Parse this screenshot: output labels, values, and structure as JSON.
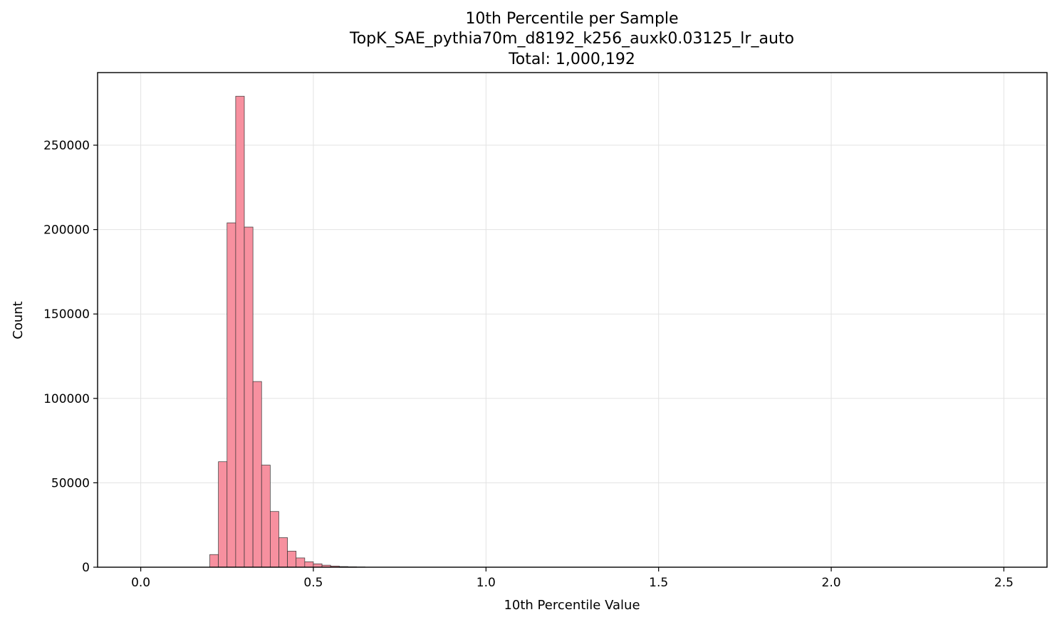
{
  "chart_data": {
    "type": "bar",
    "title": [
      "10th Percentile per Sample",
      "TopK_SAE_pythia70m_d8192_k256_auxk0.03125_lr_auto",
      "Total: 1,000,192"
    ],
    "xlabel": "10th Percentile Value",
    "ylabel": "Count",
    "xlim": [
      -0.125,
      2.625
    ],
    "ylim": [
      0,
      293000
    ],
    "xticks": [
      0.0,
      0.5,
      1.0,
      1.5,
      2.0,
      2.5
    ],
    "xtick_labels": [
      "0.0",
      "0.5",
      "1.0",
      "1.5",
      "2.0",
      "2.5"
    ],
    "yticks": [
      0,
      50000,
      100000,
      150000,
      200000,
      250000
    ],
    "ytick_labels": [
      "0",
      "50000",
      "100000",
      "150000",
      "200000",
      "250000"
    ],
    "grid": true,
    "bar_color": "#f7909f",
    "bin_width": 0.025,
    "bins": [
      {
        "x0": 0.2,
        "count": 7500
      },
      {
        "x0": 0.225,
        "count": 62500
      },
      {
        "x0": 0.25,
        "count": 204000
      },
      {
        "x0": 0.275,
        "count": 279000
      },
      {
        "x0": 0.3,
        "count": 201500
      },
      {
        "x0": 0.325,
        "count": 110000
      },
      {
        "x0": 0.35,
        "count": 60500
      },
      {
        "x0": 0.375,
        "count": 33000
      },
      {
        "x0": 0.4,
        "count": 17500
      },
      {
        "x0": 0.425,
        "count": 9500
      },
      {
        "x0": 0.45,
        "count": 5500
      },
      {
        "x0": 0.475,
        "count": 3200
      },
      {
        "x0": 0.5,
        "count": 2000
      },
      {
        "x0": 0.525,
        "count": 1200
      },
      {
        "x0": 0.55,
        "count": 700
      },
      {
        "x0": 0.575,
        "count": 400
      },
      {
        "x0": 0.6,
        "count": 250
      },
      {
        "x0": 0.625,
        "count": 150
      }
    ]
  }
}
